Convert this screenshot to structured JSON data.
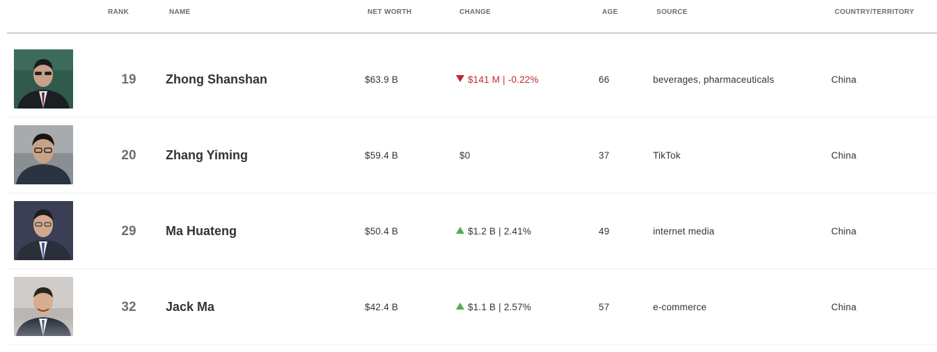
{
  "headers": {
    "rank": "RANK",
    "name": "NAME",
    "net_worth": "NET WORTH",
    "change": "CHANGE",
    "age": "AGE",
    "source": "SOURCE",
    "country": "COUNTRY/TERRITORY"
  },
  "colors": {
    "down": "#c1272d",
    "up": "#4caf50",
    "header_text": "#6b6b6b",
    "divider": "#d9d9d9"
  },
  "rows": [
    {
      "rank": "19",
      "name": "Zhong Shanshan",
      "net_worth": "$63.9 B",
      "change_direction": "down",
      "change": "$141 M | -0.22%",
      "age": "66",
      "source": "beverages, pharmaceuticals",
      "country": "China",
      "photo_icon": "person-photo"
    },
    {
      "rank": "20",
      "name": "Zhang Yiming",
      "net_worth": "$59.4 B",
      "change_direction": "flat",
      "change": "$0",
      "age": "37",
      "source": "TikTok",
      "country": "China",
      "photo_icon": "person-photo"
    },
    {
      "rank": "29",
      "name": "Ma Huateng",
      "net_worth": "$50.4 B",
      "change_direction": "up",
      "change": "$1.2 B | 2.41%",
      "age": "49",
      "source": "internet media",
      "country": "China",
      "photo_icon": "person-photo"
    },
    {
      "rank": "32",
      "name": "Jack Ma",
      "net_worth": "$42.4 B",
      "change_direction": "up",
      "change": "$1.1 B | 2.57%",
      "age": "57",
      "source": "e-commerce",
      "country": "China",
      "photo_icon": "person-photo"
    }
  ]
}
